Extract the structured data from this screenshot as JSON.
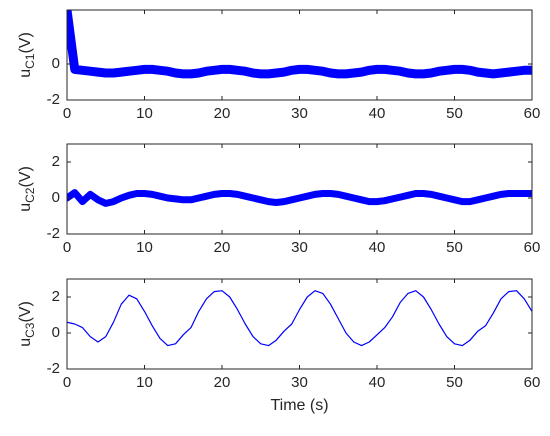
{
  "chart_data": [
    {
      "type": "line",
      "ylabel": "u",
      "ylabel_sub": "C1",
      "ylabel_unit": "(V)",
      "xlim": [
        0,
        60
      ],
      "xticks": [
        0,
        10,
        20,
        30,
        40,
        50,
        60
      ],
      "ylim": [
        -2,
        3
      ],
      "yticks": [
        -2,
        0
      ],
      "x": [
        0,
        1,
        2,
        3,
        4,
        5,
        6,
        7,
        8,
        9,
        10,
        11,
        12,
        13,
        14,
        15,
        16,
        17,
        18,
        19,
        20,
        21,
        22,
        23,
        24,
        25,
        26,
        27,
        28,
        29,
        30,
        31,
        32,
        33,
        34,
        35,
        36,
        37,
        38,
        39,
        40,
        41,
        42,
        43,
        44,
        45,
        46,
        47,
        48,
        49,
        50,
        51,
        52,
        53,
        54,
        55,
        56,
        57,
        58,
        59,
        60
      ],
      "series": [
        {
          "color": "#0000ff",
          "values": [
            3,
            -0.3,
            -0.35,
            -0.4,
            -0.45,
            -0.5,
            -0.5,
            -0.45,
            -0.4,
            -0.35,
            -0.3,
            -0.3,
            -0.35,
            -0.4,
            -0.5,
            -0.55,
            -0.55,
            -0.5,
            -0.4,
            -0.35,
            -0.3,
            -0.3,
            -0.35,
            -0.4,
            -0.5,
            -0.55,
            -0.55,
            -0.5,
            -0.45,
            -0.35,
            -0.3,
            -0.3,
            -0.35,
            -0.4,
            -0.5,
            -0.55,
            -0.55,
            -0.5,
            -0.45,
            -0.35,
            -0.3,
            -0.3,
            -0.35,
            -0.4,
            -0.5,
            -0.55,
            -0.55,
            -0.5,
            -0.4,
            -0.35,
            -0.3,
            -0.3,
            -0.35,
            -0.45,
            -0.5,
            -0.55,
            -0.5,
            -0.45,
            -0.4,
            -0.35,
            -0.35
          ]
        }
      ]
    },
    {
      "type": "line",
      "ylabel": "u",
      "ylabel_sub": "C2",
      "ylabel_unit": "(V)",
      "xlim": [
        0,
        60
      ],
      "xticks": [
        0,
        10,
        20,
        30,
        40,
        50,
        60
      ],
      "ylim": [
        -2,
        3
      ],
      "yticks": [
        -2,
        0,
        2
      ],
      "x": [
        0,
        1,
        2,
        3,
        4,
        5,
        6,
        7,
        8,
        9,
        10,
        11,
        12,
        13,
        14,
        15,
        16,
        17,
        18,
        19,
        20,
        21,
        22,
        23,
        24,
        25,
        26,
        27,
        28,
        29,
        30,
        31,
        32,
        33,
        34,
        35,
        36,
        37,
        38,
        39,
        40,
        41,
        42,
        43,
        44,
        45,
        46,
        47,
        48,
        49,
        50,
        51,
        52,
        53,
        54,
        55,
        56,
        57,
        58,
        59,
        60
      ],
      "series": [
        {
          "color": "#0000ff",
          "values": [
            0,
            0.3,
            -0.2,
            0.2,
            -0.1,
            -0.3,
            -0.2,
            0,
            0.15,
            0.25,
            0.25,
            0.2,
            0.1,
            0,
            -0.05,
            -0.1,
            -0.1,
            0,
            0.1,
            0.2,
            0.25,
            0.25,
            0.2,
            0.1,
            0,
            -0.1,
            -0.2,
            -0.25,
            -0.2,
            -0.1,
            0,
            0.1,
            0.2,
            0.25,
            0.25,
            0.2,
            0.1,
            0,
            -0.1,
            -0.2,
            -0.2,
            -0.15,
            -0.05,
            0.05,
            0.15,
            0.25,
            0.25,
            0.2,
            0.1,
            0,
            -0.1,
            -0.2,
            -0.2,
            -0.1,
            0,
            0.1,
            0.2,
            0.25,
            0.25,
            0.25,
            0.25
          ]
        }
      ]
    },
    {
      "type": "line",
      "ylabel": "u",
      "ylabel_sub": "C3",
      "ylabel_unit": "(V)",
      "xlabel": "Time (s)",
      "xlim": [
        0,
        60
      ],
      "xticks": [
        0,
        10,
        20,
        30,
        40,
        50,
        60
      ],
      "ylim": [
        -2,
        3
      ],
      "yticks": [
        -2,
        0,
        2
      ],
      "x": [
        0,
        1,
        2,
        3,
        4,
        5,
        6,
        7,
        8,
        9,
        10,
        11,
        12,
        13,
        14,
        15,
        16,
        17,
        18,
        19,
        20,
        21,
        22,
        23,
        24,
        25,
        26,
        27,
        28,
        29,
        30,
        31,
        32,
        33,
        34,
        35,
        36,
        37,
        38,
        39,
        40,
        41,
        42,
        43,
        44,
        45,
        46,
        47,
        48,
        49,
        50,
        51,
        52,
        53,
        54,
        55,
        56,
        57,
        58,
        59,
        60
      ],
      "series": [
        {
          "color": "#0000ff",
          "values": [
            0.6,
            0.5,
            0.3,
            -0.2,
            -0.5,
            -0.2,
            0.6,
            1.6,
            2.1,
            1.9,
            1.2,
            0.4,
            -0.3,
            -0.7,
            -0.6,
            -0.1,
            0.3,
            1.2,
            1.9,
            2.3,
            2.35,
            2.0,
            1.3,
            0.5,
            -0.2,
            -0.6,
            -0.7,
            -0.4,
            0.1,
            0.5,
            1.3,
            2.0,
            2.35,
            2.2,
            1.6,
            0.8,
            0.0,
            -0.5,
            -0.7,
            -0.5,
            -0.1,
            0.3,
            0.9,
            1.7,
            2.2,
            2.35,
            2.0,
            1.3,
            0.5,
            -0.2,
            -0.6,
            -0.7,
            -0.4,
            0.1,
            0.4,
            1.1,
            1.9,
            2.3,
            2.35,
            1.9,
            1.2
          ]
        }
      ]
    }
  ]
}
